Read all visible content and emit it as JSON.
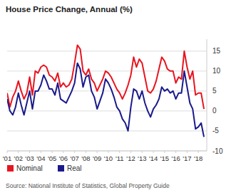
{
  "chart_data": {
    "type": "line",
    "title": "House Price Change, Annual (%)",
    "source": "Source: National Institute of Statistics, Global Property Guide",
    "x": [
      2001,
      2001.25,
      2001.5,
      2001.75,
      2002,
      2002.25,
      2002.5,
      2002.75,
      2003,
      2003.25,
      2003.5,
      2003.75,
      2004,
      2004.25,
      2004.5,
      2004.75,
      2005,
      2005.25,
      2005.5,
      2005.75,
      2006,
      2006.25,
      2006.5,
      2006.75,
      2007,
      2007.25,
      2007.5,
      2007.75,
      2008,
      2008.25,
      2008.5,
      2008.75,
      2009,
      2009.25,
      2009.5,
      2009.75,
      2010,
      2010.25,
      2010.5,
      2010.75,
      2011,
      2011.25,
      2011.5,
      2011.75,
      2012,
      2012.25,
      2012.5,
      2012.75,
      2013,
      2013.25,
      2013.5,
      2013.75,
      2014,
      2014.25,
      2014.5,
      2014.75,
      2015,
      2015.25,
      2015.5,
      2015.75,
      2016,
      2016.25,
      2016.5,
      2016.75,
      2017,
      2017.25,
      2017.5,
      2017.75,
      2018,
      2018.25,
      2018.5
    ],
    "series": [
      {
        "name": "Nominal",
        "color": "#e8141e",
        "values": [
          4.5,
          1.0,
          3.5,
          5.0,
          7.5,
          5.0,
          3.0,
          4.5,
          8.5,
          4.0,
          10.0,
          9.5,
          11.0,
          11.5,
          11.0,
          9.0,
          8.5,
          7.5,
          9.5,
          6.0,
          7.0,
          6.0,
          6.5,
          8.0,
          12.0,
          16.5,
          15.5,
          10.0,
          9.0,
          10.5,
          8.0,
          7.0,
          5.0,
          6.5,
          8.0,
          10.0,
          9.5,
          8.5,
          7.0,
          5.5,
          4.5,
          3.0,
          4.5,
          6.5,
          9.0,
          13.5,
          11.0,
          13.0,
          12.0,
          8.5,
          5.0,
          4.5,
          5.5,
          7.5,
          10.5,
          13.5,
          12.5,
          10.5,
          10.0,
          10.0,
          7.0,
          8.5,
          8.0,
          15.0,
          11.0,
          8.0,
          10.0,
          4.0,
          4.5,
          4.5,
          0.5
        ]
      },
      {
        "name": "Real",
        "color": "#1a1a8c",
        "values": [
          3.0,
          0.0,
          -1.0,
          1.0,
          4.5,
          1.5,
          -1.0,
          2.0,
          5.0,
          0.5,
          5.0,
          5.0,
          6.5,
          9.0,
          7.5,
          5.5,
          5.5,
          4.0,
          7.0,
          3.0,
          2.5,
          2.0,
          3.5,
          5.0,
          7.0,
          12.0,
          10.5,
          6.0,
          8.5,
          9.0,
          5.0,
          3.5,
          0.5,
          2.5,
          4.5,
          8.0,
          7.0,
          5.5,
          3.5,
          1.0,
          0.0,
          -2.0,
          -3.0,
          -5.0,
          1.0,
          5.5,
          5.0,
          3.0,
          5.0,
          2.0,
          0.0,
          -1.5,
          0.5,
          1.5,
          3.0,
          6.0,
          5.0,
          5.5,
          4.5,
          5.0,
          3.0,
          4.5,
          4.5,
          10.0,
          6.0,
          2.0,
          0.5,
          -4.5,
          -4.0,
          -3.0,
          -6.5
        ]
      }
    ],
    "xlim": [
      2001,
      2018.75
    ],
    "xticks": [
      {
        "value": 2001,
        "label": "'01"
      },
      {
        "value": 2002,
        "label": "'02"
      },
      {
        "value": 2003,
        "label": "'03"
      },
      {
        "value": 2004,
        "label": "'04"
      },
      {
        "value": 2005,
        "label": "'05"
      },
      {
        "value": 2006,
        "label": "'06"
      },
      {
        "value": 2007,
        "label": "'07"
      },
      {
        "value": 2008,
        "label": "'08"
      },
      {
        "value": 2009,
        "label": "'09"
      },
      {
        "value": 2010,
        "label": "'10"
      },
      {
        "value": 2011,
        "label": "'11"
      },
      {
        "value": 2012,
        "label": "'12"
      },
      {
        "value": 2013,
        "label": "'13"
      },
      {
        "value": 2014,
        "label": "'14"
      },
      {
        "value": 2015,
        "label": "'15"
      },
      {
        "value": 2016,
        "label": "'16"
      },
      {
        "value": 2017,
        "label": "'17"
      },
      {
        "value": 2018,
        "label": "'18"
      }
    ],
    "ylim": [
      -10,
      18
    ],
    "yticks": [
      -10,
      -5,
      0,
      5,
      10,
      15
    ],
    "grid": true,
    "legend": "bottom"
  }
}
